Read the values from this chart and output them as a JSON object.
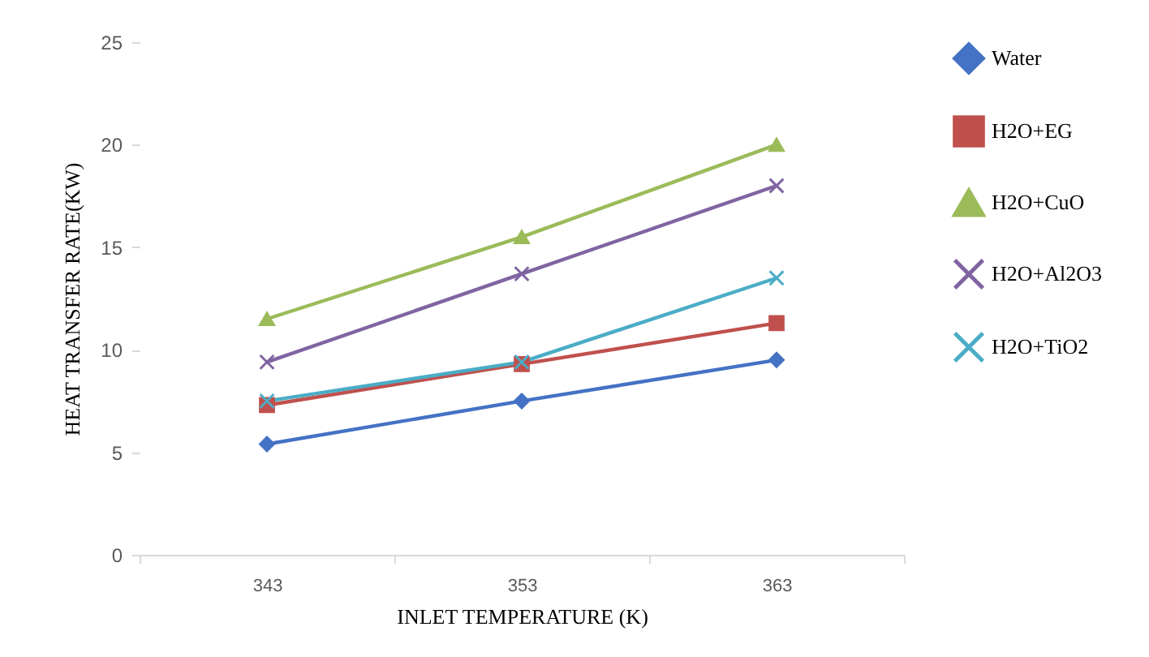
{
  "chart_data": {
    "type": "line",
    "xlabel": "INLET TEMPERATURE (K)",
    "ylabel": "HEAT TRANSFER RATE(KW)",
    "categories": [
      "343",
      "353",
      "363"
    ],
    "ylim": [
      0,
      25
    ],
    "yticks": [
      0,
      5,
      10,
      15,
      20,
      25
    ],
    "grid": false,
    "legend": "right",
    "series": [
      {
        "name": "Water",
        "color": "#4472c4",
        "marker": "diamond",
        "values": [
          5.4,
          7.5,
          9.5
        ]
      },
      {
        "name": "H2O+EG",
        "color": "#c0504d",
        "marker": "square",
        "values": [
          7.3,
          9.3,
          11.3
        ]
      },
      {
        "name": "H2O+CuO",
        "color": "#9bbb59",
        "marker": "triangle",
        "values": [
          11.5,
          15.5,
          20
        ]
      },
      {
        "name": "H2O+Al2O3",
        "color": "#8064a2",
        "marker": "cross",
        "values": [
          9.4,
          13.7,
          18
        ]
      },
      {
        "name": "H2O+TiO2",
        "color": "#4bacc6",
        "marker": "cross",
        "values": [
          7.5,
          9.4,
          13.5
        ]
      }
    ]
  }
}
